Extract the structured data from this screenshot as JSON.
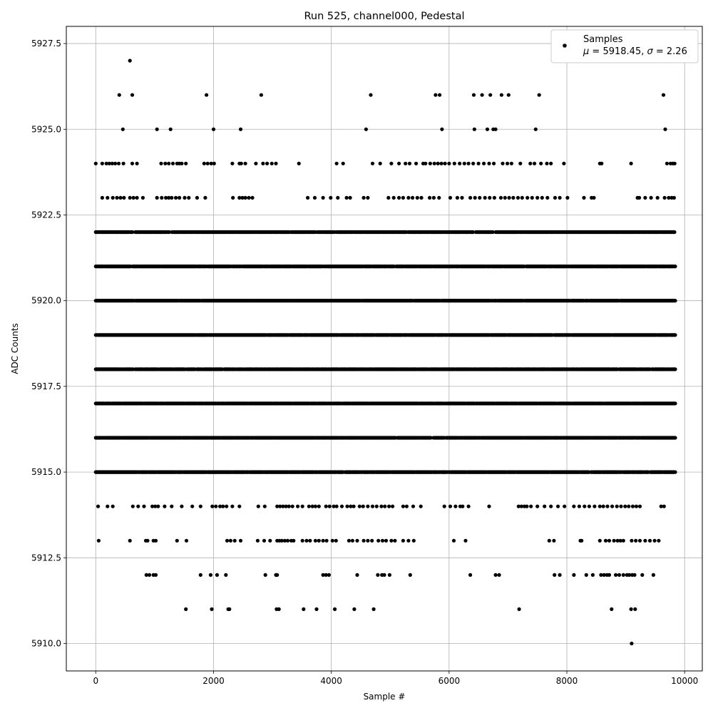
{
  "chart_data": {
    "type": "scatter",
    "title": "Run 525, channel000, Pedestal",
    "xlabel": "Sample #",
    "ylabel": "ADC Counts",
    "xlim": [
      -500,
      10300
    ],
    "ylim": [
      5909.2,
      5928.0
    ],
    "xticks": [
      0,
      2000,
      4000,
      6000,
      8000,
      10000
    ],
    "yticks": [
      5910.0,
      5912.5,
      5915.0,
      5917.5,
      5920.0,
      5922.5,
      5925.0,
      5927.5
    ],
    "grid": true,
    "legend": {
      "placement": "top-right",
      "label": "Samples",
      "mu_symbol": "μ",
      "sigma_symbol": "σ",
      "mu_value": "5918.45",
      "sigma_value": "2.26"
    },
    "marker_color": "#000000",
    "series": [
      {
        "name": "Samples",
        "sample_count": 9850,
        "levels": [
          {
            "y": 5910,
            "x": [
              9100
            ]
          },
          {
            "y": 5911,
            "x": [
              1530,
              1970,
              2250,
              2270,
              3070,
              3110,
              3530,
              3750,
              4060,
              4390,
              4720,
              7190,
              8760,
              9090,
              9160
            ]
          },
          {
            "y": 5912,
            "x": [
              860,
              910,
              980,
              1020,
              1780,
              1950,
              2060,
              2210,
              2880,
              3060,
              3080,
              3860,
              3910,
              3960,
              4440,
              4790,
              4860,
              4900,
              4990,
              5340,
              6360,
              6790,
              6850,
              7790,
              7880,
              8120,
              8330,
              8440,
              8580,
              8630,
              8680,
              8720,
              8830,
              8890,
              8960,
              9020,
              9060,
              9110,
              9150,
              9280,
              9470
            ]
          },
          {
            "y": 5913,
            "x": [
              50,
              580,
              850,
              880,
              980,
              1020,
              1380,
              1540,
              2230,
              2290,
              2360,
              2460,
              2750,
              2860,
              2960,
              3080,
              3120,
              3160,
              3210,
              3260,
              3320,
              3360,
              3510,
              3580,
              3640,
              3730,
              3790,
              3860,
              3920,
              4020,
              4080,
              4300,
              4360,
              4440,
              4550,
              4620,
              4690,
              4800,
              4870,
              4930,
              5020,
              5080,
              5220,
              5310,
              5400,
              6080,
              6280,
              7700,
              7780,
              8230,
              8250,
              8560,
              8660,
              8720,
              8800,
              8860,
              8910,
              8960,
              9100,
              9170,
              9240,
              9330,
              9410,
              9490,
              9560
            ]
          },
          {
            "y": 5914,
            "x": [
              40,
              200,
              290,
              630,
              720,
              820,
              960,
              1010,
              1060,
              1170,
              1290,
              1460,
              1640,
              1780,
              1980,
              2040,
              2110,
              2160,
              2220,
              2320,
              2440,
              2760,
              2870,
              3080,
              3130,
              3180,
              3230,
              3280,
              3340,
              3430,
              3510,
              3620,
              3680,
              3730,
              3790,
              3910,
              3970,
              4040,
              4090,
              4180,
              4270,
              4330,
              4380,
              4480,
              4540,
              4620,
              4700,
              4770,
              4850,
              4910,
              4980,
              5040,
              5220,
              5280,
              5390,
              5520,
              5920,
              6020,
              6110,
              6190,
              6230,
              6330,
              6680,
              7180,
              7230,
              7280,
              7320,
              7390,
              7500,
              7620,
              7730,
              7850,
              7960,
              8120,
              8210,
              8300,
              8380,
              8470,
              8560,
              8620,
              8690,
              8770,
              8850,
              8920,
              8990,
              9050,
              9120,
              9180,
              9240,
              9600,
              9650
            ]
          }
        ],
        "outliers": [
          {
            "x": 580,
            "y": 5927
          },
          {
            "x": 400,
            "y": 5926
          },
          {
            "x": 620,
            "y": 5926
          },
          {
            "x": 1880,
            "y": 5926
          },
          {
            "x": 2810,
            "y": 5926
          },
          {
            "x": 4670,
            "y": 5926
          },
          {
            "x": 5770,
            "y": 5926
          },
          {
            "x": 5840,
            "y": 5926
          },
          {
            "x": 6420,
            "y": 5926
          },
          {
            "x": 6560,
            "y": 5926
          },
          {
            "x": 6700,
            "y": 5926
          },
          {
            "x": 6890,
            "y": 5926
          },
          {
            "x": 7010,
            "y": 5926
          },
          {
            "x": 7530,
            "y": 5926
          },
          {
            "x": 9640,
            "y": 5926
          },
          {
            "x": 460,
            "y": 5925
          },
          {
            "x": 1040,
            "y": 5925
          },
          {
            "x": 1270,
            "y": 5925
          },
          {
            "x": 2000,
            "y": 5925
          },
          {
            "x": 2460,
            "y": 5925
          },
          {
            "x": 4590,
            "y": 5925
          },
          {
            "x": 5880,
            "y": 5925
          },
          {
            "x": 6430,
            "y": 5925
          },
          {
            "x": 6650,
            "y": 5925
          },
          {
            "x": 6750,
            "y": 5925
          },
          {
            "x": 6790,
            "y": 5925
          },
          {
            "x": 7470,
            "y": 5925
          },
          {
            "x": 9670,
            "y": 5925
          }
        ],
        "sparse_levels": [
          {
            "y": 5924,
            "x": [
              0,
              110,
              180,
              230,
              280,
              330,
              390,
              470,
              620,
              700,
              1110,
              1180,
              1240,
              1310,
              1380,
              1420,
              1460,
              1530,
              1840,
              1900,
              1960,
              2010,
              2320,
              2440,
              2470,
              2540,
              2720,
              2840,
              2910,
              2990,
              3060,
              3450,
              4090,
              4200,
              4700,
              4830,
              5020,
              5150,
              5260,
              5330,
              5440,
              5560,
              5600,
              5680,
              5750,
              5810,
              5870,
              5930,
              6000,
              6090,
              6180,
              6260,
              6330,
              6410,
              6500,
              6590,
              6680,
              6760,
              6910,
              6990,
              7060,
              7210,
              7380,
              7450,
              7560,
              7660,
              7730,
              7950,
              8560,
              8590,
              9090,
              9700,
              9760,
              9800,
              9830
            ]
          },
          {
            "y": 5923,
            "x": [
              110,
              200,
              290,
              360,
              420,
              480,
              580,
              640,
              700,
              800,
              1040,
              1120,
              1190,
              1240,
              1290,
              1360,
              1420,
              1510,
              1580,
              1720,
              1860,
              2330,
              2440,
              2490,
              2540,
              2600,
              2660,
              3600,
              3720,
              3860,
              3990,
              4110,
              4260,
              4320,
              4550,
              4620,
              4970,
              5060,
              5150,
              5220,
              5310,
              5380,
              5460,
              5530,
              5670,
              5740,
              5830,
              6020,
              6140,
              6220,
              6360,
              6440,
              6520,
              6610,
              6690,
              6770,
              6880,
              6950,
              7020,
              7090,
              7170,
              7240,
              7330,
              7410,
              7500,
              7580,
              7670,
              7800,
              7880,
              8010,
              8290,
              8420,
              8460,
              9200,
              9230,
              9330,
              9430,
              9540,
              9660,
              9730,
              9780,
              9820
            ]
          }
        ],
        "dense_levels": [
          5915,
          5916,
          5917,
          5918,
          5919,
          5920,
          5921,
          5922
        ],
        "dense_x_range": [
          0,
          9850
        ]
      }
    ]
  }
}
